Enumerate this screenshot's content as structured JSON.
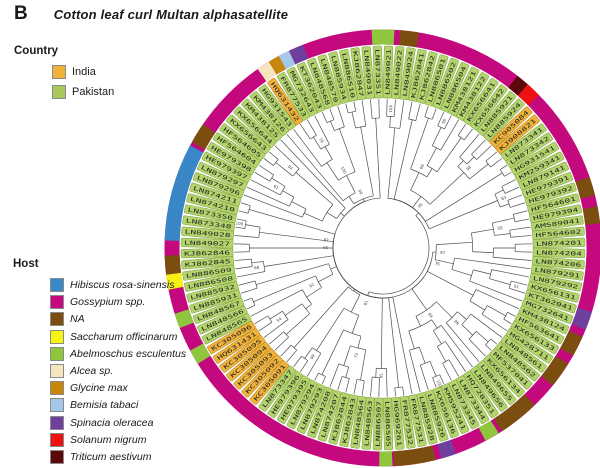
{
  "panel_label": "B",
  "title": "Cotton leaf curl Multan alphasatellite",
  "legend_country": {
    "heading": "Country",
    "items": [
      {
        "label": "India",
        "color": "#F2BядA"
      },
      {
        "label": "Pakistan",
        "color": "#A8C95A"
      }
    ]
  },
  "legend_host": {
    "heading": "Host",
    "items": [
      {
        "label": "Hibiscus rosa-sinensis",
        "color": "#3A87C8"
      },
      {
        "label": "Gossypium spp.",
        "color": "#C4087E"
      },
      {
        "label": "NA",
        "color": "#7B4E10"
      },
      {
        "label": "Saccharum officinarum",
        "color": "#F5F214"
      },
      {
        "label": "Abelmoschus esculentus",
        "color": "#8FC63D"
      },
      {
        "label": "Alcea sp.",
        "color": "#F5E6C0"
      },
      {
        "label": "Glycine max",
        "color": "#C8860B"
      },
      {
        "label": "Bemisia tabaci",
        "color": "#A6C8E8"
      },
      {
        "label": "Spinacia oleracea",
        "color": "#6F3F9E"
      },
      {
        "label": "Solanum nigrum",
        "color": "#EE1111"
      },
      {
        "label": "Triticum aestivum",
        "color": "#5C0709"
      }
    ]
  },
  "chart_data": {
    "type": "circular-phylogenetic-tree",
    "title": "Cotton leaf curl Multan alphasatellite",
    "leaf_count": 112,
    "country_colors": {
      "India": "#EFB33C",
      "Pakistan": "#B3D36C"
    },
    "country_borders": {
      "India": "#B07F1A",
      "Pakistan": "#7A9E3B"
    },
    "leaf_ids": [
      "LN849021",
      "LN849022",
      "LN849024",
      "KJ862841",
      "KJ862842",
      "LN886501",
      "LN886502",
      "LN886504",
      "KM438121",
      "KM438122",
      "KX656641",
      "KX656642",
      "LN885921",
      "LN885924",
      "KC905084",
      "KJ908821",
      "LN873341",
      "LN873342",
      "HG931541",
      "KM259341",
      "LN879141",
      "HE979391",
      "HE979392",
      "HF564601",
      "HE979394",
      "AM589041",
      "HF564602",
      "LN874201",
      "LN874204",
      "LN874206",
      "LN879291",
      "LN879292",
      "KX656131",
      "KT362041",
      "MG732641",
      "KM438124",
      "HF563641",
      "KX656133",
      "HG428711",
      "LN848561",
      "LN848562",
      "MF537041",
      "KX656134",
      "LN849655",
      "LN849656",
      "HQ728351",
      "LN873344",
      "LN873345",
      "KM595241",
      "KX656136",
      "LN885926",
      "LN885928",
      "FR877531",
      "FR877532",
      "HG969261",
      "LN886505",
      "LN886507",
      "LN848563",
      "LN848564",
      "KJ862843",
      "KJ862844",
      "LN874207",
      "LN874208",
      "LN879293",
      "LN879294",
      "HE979395",
      "HE979396",
      "LN873347",
      "KC305091",
      "KC305092",
      "KC305093",
      "KC305094",
      "KC305095",
      "HQ631431",
      "KC305096",
      "LN848565",
      "LN848566",
      "LN848567",
      "LN885931",
      "LN885932",
      "LN886508",
      "LN886509",
      "KJ862845",
      "KJ862846",
      "LN849027",
      "LN849028",
      "LN873348",
      "LN873350",
      "LN874210",
      "LN874211",
      "LN879296",
      "LN879297",
      "HE979397",
      "HE979398",
      "HF564604",
      "HF564605",
      "KX656643",
      "KX656644",
      "KM438125",
      "KM438126",
      "HG931543",
      "HQ631432",
      "FR877533",
      "MG732643",
      "KT362043",
      "LN848568",
      "LN848570",
      "LN885934",
      "LN886510",
      "KJ862847",
      "LN849031",
      "LN873351"
    ],
    "india_leaf_indices": [
      14,
      15,
      68,
      69,
      70,
      71,
      72,
      73,
      74,
      101
    ],
    "default_host": "Gossypium spp.",
    "host_ring_segments": [
      {
        "start": -3,
        "end": 3,
        "host": "Abelmoschus esculentus"
      },
      {
        "start": 4.5,
        "end": 9.5,
        "host": "NA"
      },
      {
        "start": 38,
        "end": 41.5,
        "host": "Triticum aestivum"
      },
      {
        "start": 41.5,
        "end": 45.5,
        "host": "Solanum nigrum"
      },
      {
        "start": 71,
        "end": 76,
        "host": "NA"
      },
      {
        "start": 79,
        "end": 83.5,
        "host": "NA"
      },
      {
        "start": 107,
        "end": 112,
        "host": "Spinacia oleracea"
      },
      {
        "start": 114,
        "end": 119.5,
        "host": "NA"
      },
      {
        "start": 122,
        "end": 129,
        "host": "NA"
      },
      {
        "start": 136,
        "end": 147,
        "host": "NA"
      },
      {
        "start": 148,
        "end": 152,
        "host": "Abelmoschus esculentus"
      },
      {
        "start": 160.5,
        "end": 164.5,
        "host": "Spinacia oleracea"
      },
      {
        "start": 166,
        "end": 177,
        "host": "NA"
      },
      {
        "start": 177.5,
        "end": 181,
        "host": "Abelmoschus esculentus"
      },
      {
        "start": 238,
        "end": 242,
        "host": "Abelmoschus esculentus"
      },
      {
        "start": 248.5,
        "end": 252.5,
        "host": "Abelmoschus esculentus"
      },
      {
        "start": 259,
        "end": 263,
        "host": "Saccharum officinarum"
      },
      {
        "start": 263,
        "end": 268,
        "host": "NA"
      },
      {
        "start": 272,
        "end": 298,
        "host": "Hibiscus rosa-sinensis"
      },
      {
        "start": 299,
        "end": 304.5,
        "host": "NA"
      },
      {
        "start": 325,
        "end": 328.5,
        "host": "Alcea sp."
      },
      {
        "start": 328.5,
        "end": 331.5,
        "host": "Glycine max"
      },
      {
        "start": 331.5,
        "end": 334.5,
        "host": "Bemisia tabaci"
      },
      {
        "start": 334.5,
        "end": 338.5,
        "host": "Spinacia oleracea"
      }
    ],
    "bootstrap_values": [
      100,
      99,
      66,
      98,
      45,
      83,
      58,
      91,
      97,
      76,
      88,
      100,
      64,
      95,
      72,
      99,
      81,
      54,
      92,
      68,
      100,
      87,
      61,
      94,
      79
    ],
    "layout": {
      "center": [
        383,
        248
      ],
      "ring_radius": 211,
      "ring_width": 15,
      "label_r_inner": 150,
      "label_r_outer": 202,
      "leaf_tip_r": 149,
      "root_r": 46
    }
  }
}
